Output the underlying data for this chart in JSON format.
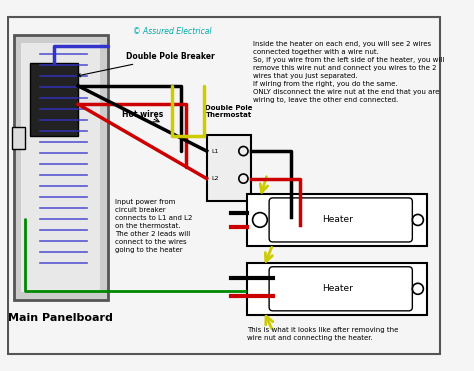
{
  "copyright_text": "© Assured Electrical",
  "bg_color": "#f5f5f5",
  "main_panelboard_label": "Main Panelboard",
  "double_pole_breaker_label": "Double Pole Breaker",
  "hot_wires_label": "Hot wires",
  "double_pole_thermostat_label": "Double Pole\nThermostat",
  "input_power_text": "Input power from\ncircuit breaker\nconnects to L1 and L2\non the thermostat.\nThe other 2 leads will\nconnect to the wires\ngoing to the heater",
  "right_text": "Inside the heater on each end, you will see 2 wires\nconnected together with a wire nut.\nSo, if you wire from the left side of the heater, you will\nremove this wire nut and connect you wires to the 2\nwires that you just separated.\nIf wiring from the right, you do the same.\nONLY disconnect the wire nut at the end that you are\nwiring to, leave the other end connected.",
  "bottom_text": "This is what it looks like after removing the\nwire nut and connecting the heater.",
  "heater_label": "Heater",
  "colors": {
    "black": "#000000",
    "red": "#cc0000",
    "green": "#008800",
    "blue": "#3333cc",
    "yellow": "#cccc00",
    "cyan": "#00aaaa",
    "white": "#ffffff",
    "gray_panel": "#cccccc",
    "gray_inner": "#e8e8e8",
    "dark_gray": "#555555",
    "light_gray": "#dddddd"
  }
}
